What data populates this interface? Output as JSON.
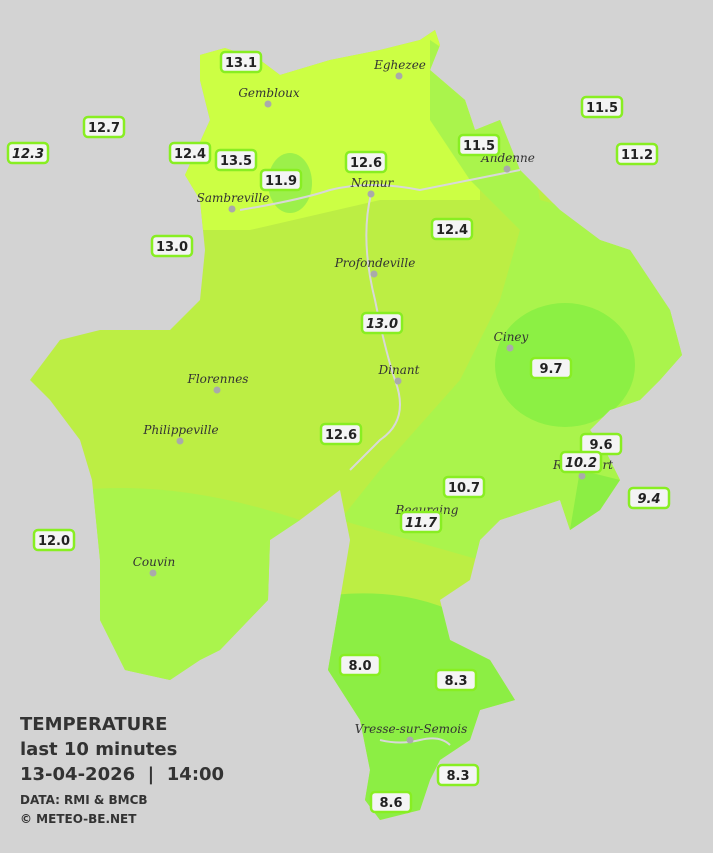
{
  "legend": {
    "title": "TEMPERATURE",
    "period": "last 10 minutes",
    "datetime": "13-04-2026  |  14:00",
    "source": "DATA: RMI & BMCB",
    "copyright": "© METEO-BE.NET"
  },
  "towns": [
    "Eghezee",
    "Gembloux",
    "Andenne",
    "Namur",
    "Sambreville",
    "Profondeville",
    "Ciney",
    "Dinant",
    "Florennes",
    "Philippeville",
    "Rochefort",
    "Beauraing",
    "Couvin",
    "Vresse-sur-Semois"
  ],
  "readings": [
    "13.1",
    "12.7",
    "12.3",
    "12.4",
    "13.5",
    "11.9",
    "12.6",
    "11.5",
    "11.5",
    "11.2",
    "13.0",
    "12.4",
    "13.0",
    "9.7",
    "12.6",
    "9.6",
    "10.2",
    "9.4",
    "10.7",
    "11.7",
    "12.0",
    "8.0",
    "8.3",
    "8.3",
    "8.6"
  ]
}
